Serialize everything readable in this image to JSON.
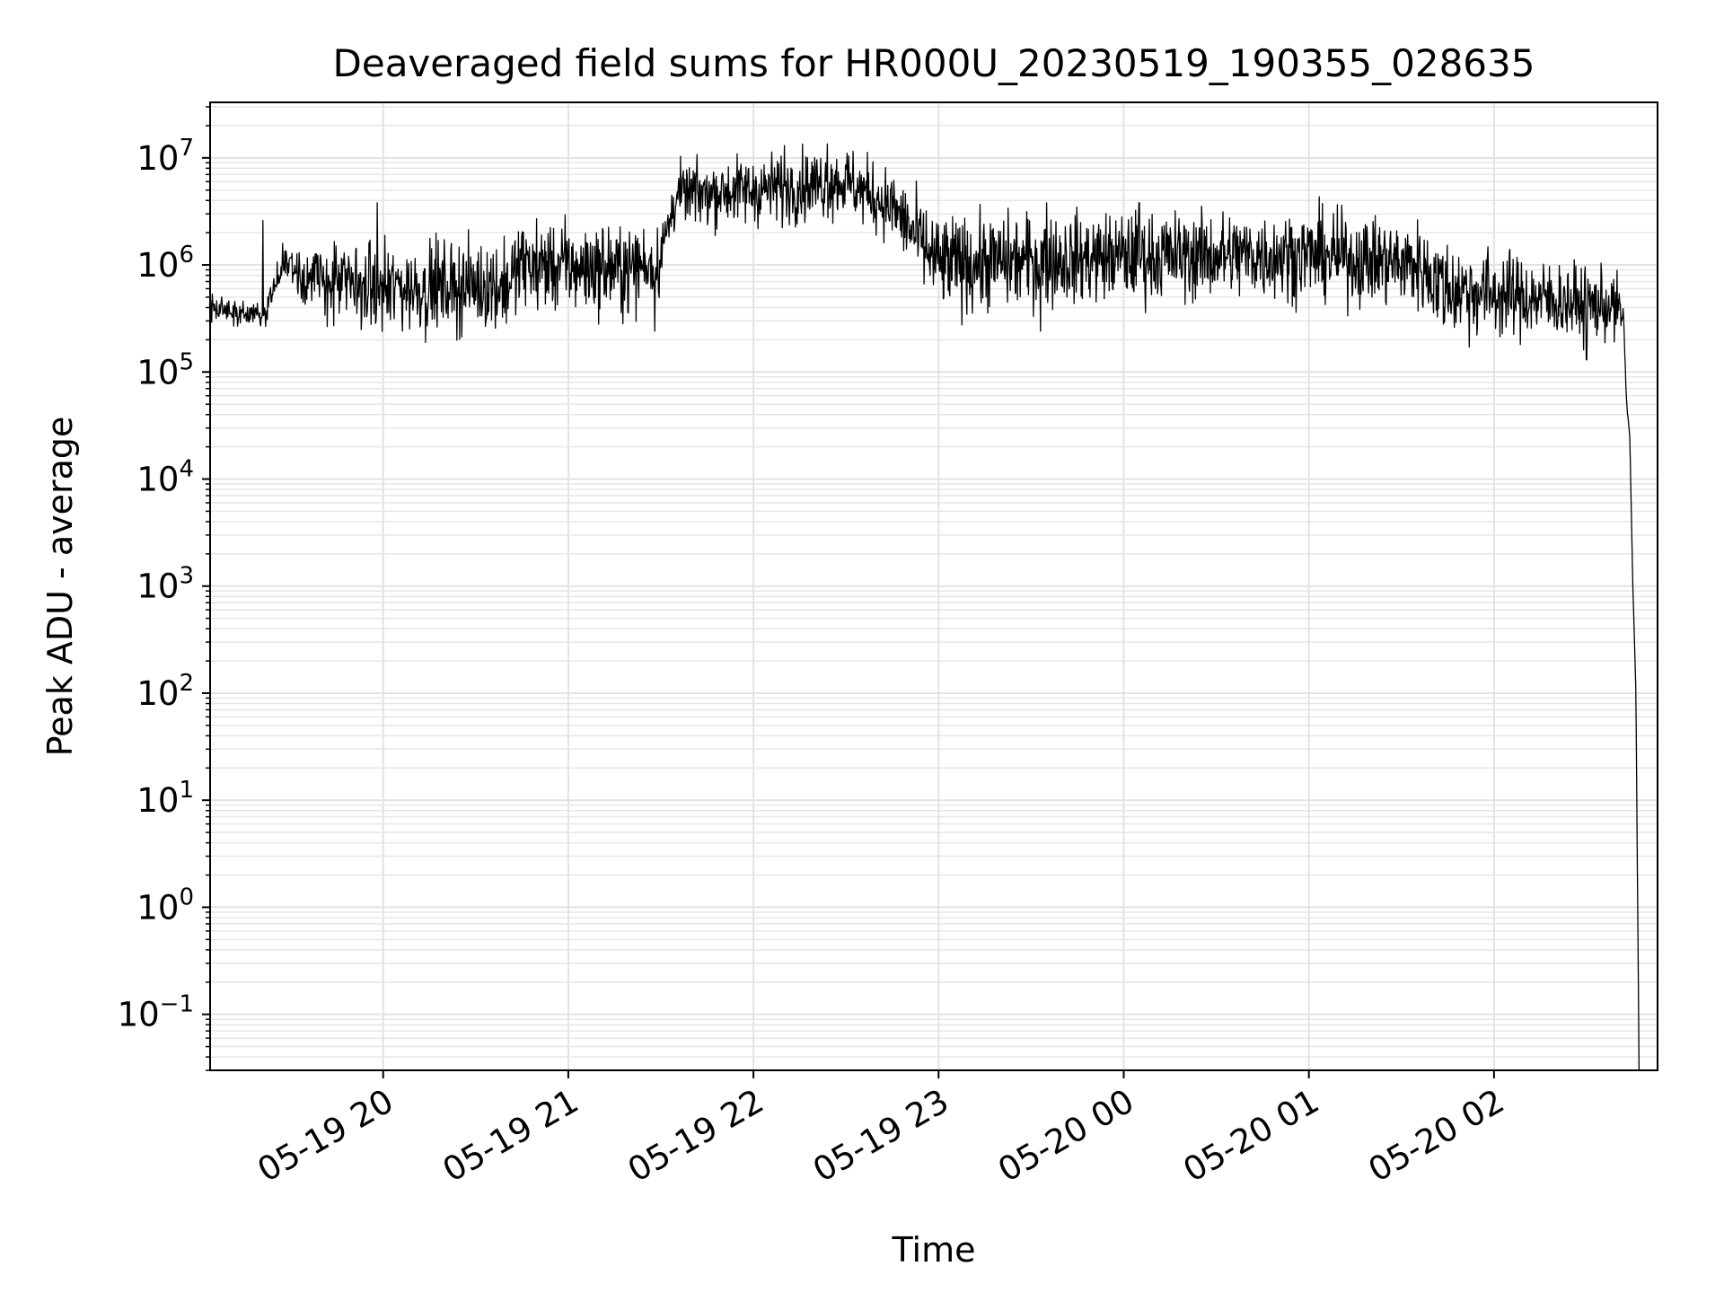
{
  "chart_data": {
    "type": "line",
    "title": "Deaveraged field sums for HR000U_20230519_190355_028635",
    "xlabel": "Time",
    "ylabel": "Peak ADU - average",
    "yscale": "log",
    "ylim": [
      0.03,
      33000000
    ],
    "xlim": [
      "2023-05-19 19:03:55",
      "2023-05-20 02:53:00"
    ],
    "grid": true,
    "x_ticks": [
      {
        "value": "2023-05-19 20:00",
        "label": "05-19 20"
      },
      {
        "value": "2023-05-19 21:00",
        "label": "05-19 21"
      },
      {
        "value": "2023-05-19 22:00",
        "label": "05-19 22"
      },
      {
        "value": "2023-05-19 23:00",
        "label": "05-19 23"
      },
      {
        "value": "2023-05-20 00:00",
        "label": "05-20 00"
      },
      {
        "value": "2023-05-20 01:00",
        "label": "05-20 01"
      },
      {
        "value": "2023-05-20 02:00",
        "label": "05-20 02"
      }
    ],
    "y_ticks": [
      {
        "value": 0.1,
        "base": "10",
        "exp": "−1"
      },
      {
        "value": 1,
        "base": "10",
        "exp": "0"
      },
      {
        "value": 10,
        "base": "10",
        "exp": "1"
      },
      {
        "value": 100,
        "base": "10",
        "exp": "2"
      },
      {
        "value": 1000,
        "base": "10",
        "exp": "3"
      },
      {
        "value": 10000,
        "base": "10",
        "exp": "4"
      },
      {
        "value": 100000,
        "base": "10",
        "exp": "5"
      },
      {
        "value": 1000000,
        "base": "10",
        "exp": "6"
      },
      {
        "value": 10000000,
        "base": "10",
        "exp": "7"
      }
    ],
    "series": [
      {
        "color": "#000000",
        "trend": [
          {
            "x": "2023-05-19 19:03:55",
            "y": 400000,
            "spread": 0.06
          },
          {
            "x": "2023-05-19 19:20",
            "y": 340000,
            "spread": 0.06
          },
          {
            "x": "2023-05-19 19:22",
            "y": 330000,
            "spread": 0.06
          },
          {
            "x": "2023-05-19 19:28",
            "y": 1150000,
            "spread": 0.08
          },
          {
            "x": "2023-05-19 19:35",
            "y": 750000,
            "spread": 0.15
          },
          {
            "x": "2023-05-19 20:00",
            "y": 600000,
            "spread": 0.2
          },
          {
            "x": "2023-05-19 20:40",
            "y": 650000,
            "spread": 0.2
          },
          {
            "x": "2023-05-19 20:45",
            "y": 1000000,
            "spread": 0.2
          },
          {
            "x": "2023-05-19 21:20",
            "y": 900000,
            "spread": 0.2
          },
          {
            "x": "2023-05-19 21:30",
            "y": 1200000,
            "spread": 0.18
          },
          {
            "x": "2023-05-19 21:35",
            "y": 4500000,
            "spread": 0.13
          },
          {
            "x": "2023-05-19 22:00",
            "y": 5000000,
            "spread": 0.16
          },
          {
            "x": "2023-05-19 22:30",
            "y": 6000000,
            "spread": 0.16
          },
          {
            "x": "2023-05-19 22:45",
            "y": 3500000,
            "spread": 0.16
          },
          {
            "x": "2023-05-19 23:00",
            "y": 1000000,
            "spread": 0.22
          },
          {
            "x": "2023-05-20 00:00",
            "y": 1200000,
            "spread": 0.2
          },
          {
            "x": "2023-05-20 01:00",
            "y": 1250000,
            "spread": 0.2
          },
          {
            "x": "2023-05-20 01:35",
            "y": 1000000,
            "spread": 0.2
          },
          {
            "x": "2023-05-20 01:45",
            "y": 600000,
            "spread": 0.22
          },
          {
            "x": "2023-05-20 02:40",
            "y": 400000,
            "spread": 0.15
          },
          {
            "x": "2023-05-20 02:42",
            "y": 300000,
            "spread": 0.05
          },
          {
            "x": "2023-05-20 02:43",
            "y": 50000,
            "spread": 0.02
          },
          {
            "x": "2023-05-20 02:44",
            "y": 25000,
            "spread": 0.0
          },
          {
            "x": "2023-05-20 02:45",
            "y": 1000,
            "spread": 0.0
          },
          {
            "x": "2023-05-20 02:46",
            "y": 100,
            "spread": 0.0
          },
          {
            "x": "2023-05-20 02:47",
            "y": 0.03,
            "spread": 0.0
          }
        ],
        "spikes": [
          {
            "x": "2023-05-19 19:21",
            "y": 2600000
          },
          {
            "x": "2023-05-19 19:58",
            "y": 3800000
          },
          {
            "x": "2023-05-19 21:28",
            "y": 240000
          },
          {
            "x": "2023-05-19 22:10",
            "y": 13000000
          },
          {
            "x": "2023-05-19 22:24",
            "y": 13500000
          },
          {
            "x": "2023-05-19 23:33",
            "y": 240000
          },
          {
            "x": "2023-05-19 23:35",
            "y": 3800000
          },
          {
            "x": "2023-05-20 00:05",
            "y": 3800000
          },
          {
            "x": "2023-05-20 02:30",
            "y": 130000
          }
        ]
      }
    ]
  }
}
